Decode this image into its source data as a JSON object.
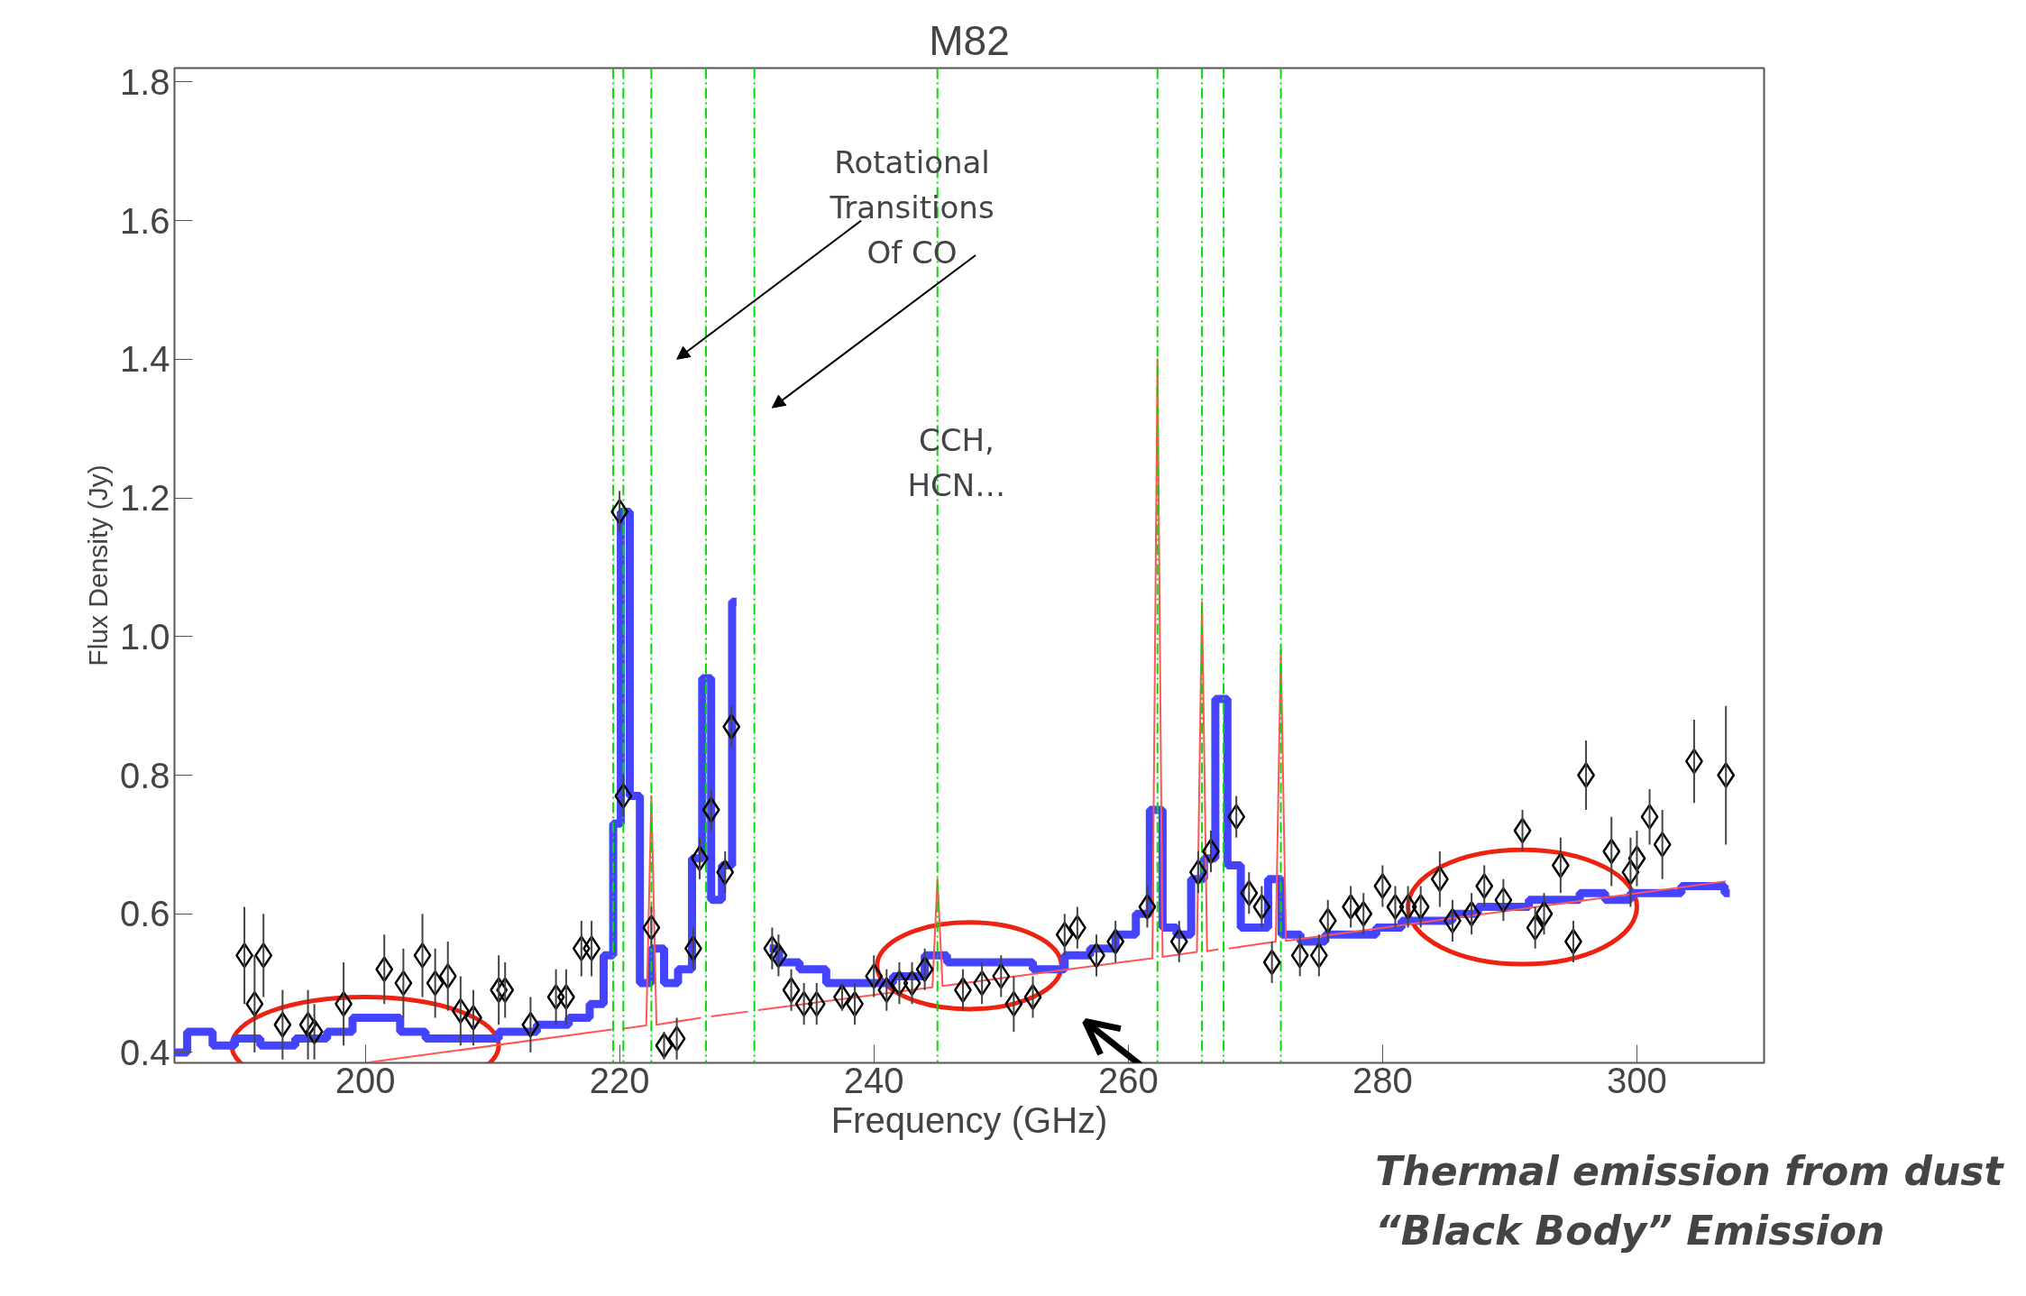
{
  "chart_data": {
    "type": "line",
    "title": "M82",
    "xlabel": "Frequency (GHz)",
    "ylabel": "Flux Density (Jy)",
    "xlim": [
      185,
      310
    ],
    "xticks": [
      200,
      220,
      240,
      260,
      280,
      300
    ],
    "ylim": [
      0.385,
      1.82
    ],
    "yticks": [
      0.4,
      0.6,
      0.8,
      {
        "value": 1.0,
        "label": "1.0"
      },
      1.2,
      1.4,
      1.6,
      1.8
    ],
    "grid": false,
    "series": [
      {
        "type": "step",
        "color": "#4444ff",
        "x": [
          185,
          187,
          189,
          190.5,
          193,
          196,
          198,
          200,
          202,
          203.5,
          206,
          209,
          212,
          215,
          217,
          218.3,
          219.2,
          219.8,
          220.4,
          221.2,
          222,
          223,
          224,
          225.2,
          226.2,
          226.8,
          227.6,
          228.5,
          229.2,
          230.2,
          231.8,
          233.3,
          235,
          237.5,
          240,
          243,
          245,
          246.5,
          248.5,
          251,
          254,
          256,
          258,
          260,
          261.2,
          262.2,
          263.2,
          264.4,
          265.5,
          266.4,
          267.3,
          268.3,
          269.4,
          270.5,
          271.5,
          272.6,
          274.5,
          276.5,
          278.5,
          280.5,
          282.5,
          284.5,
          286.5,
          288.5,
          290.5,
          292.5,
          294.5,
          296.5,
          298.5,
          300.5,
          302.5,
          304.5,
          306.5,
          307.3
        ],
        "values": [
          0.4,
          0.43,
          0.41,
          0.42,
          0.41,
          0.42,
          0.43,
          0.45,
          0.45,
          0.43,
          0.42,
          0.42,
          0.43,
          0.44,
          0.45,
          0.47,
          0.54,
          0.73,
          1.18,
          0.77,
          0.5,
          0.55,
          0.5,
          0.52,
          0.68,
          0.94,
          0.62,
          0.67,
          1.05,
          null,
          0.55,
          0.53,
          0.52,
          0.5,
          0.5,
          0.51,
          0.54,
          0.53,
          0.53,
          0.53,
          0.52,
          0.54,
          0.55,
          0.57,
          0.6,
          0.75,
          0.58,
          0.57,
          0.65,
          0.68,
          0.91,
          0.67,
          0.58,
          0.58,
          0.65,
          0.57,
          0.56,
          0.57,
          0.57,
          0.58,
          0.59,
          0.59,
          0.6,
          0.61,
          0.61,
          0.62,
          0.62,
          0.63,
          0.62,
          0.63,
          0.63,
          0.64,
          0.64,
          0.63
        ]
      },
      {
        "color": "#ff5555",
        "x": [
          200,
          219.4,
          219.8,
          220.2,
          222.1,
          222.5,
          222.9,
          226.4,
          226.8,
          227.2,
          230.1,
          230.5,
          230.9,
          244.6,
          245,
          245.4,
          261.9,
          262.3,
          262.7,
          265.4,
          265.8,
          266.2,
          267.1,
          267.5,
          267.9,
          271.6,
          272,
          272.4,
          307
        ],
        "values": [
          0.385,
          0.433,
          null,
          0.434,
          0.439,
          0.77,
          0.44,
          0.45,
          null,
          0.452,
          0.459,
          null,
          0.461,
          0.494,
          0.65,
          0.496,
          0.536,
          1.4,
          0.538,
          0.545,
          1.05,
          0.546,
          0.549,
          null,
          0.55,
          0.56,
          0.98,
          0.561,
          0.647
        ]
      },
      {
        "type": "scatter",
        "color": "#000000",
        "marker": "diamond",
        "x": [
          190.5,
          192,
          191.3,
          193.5,
          196,
          195.5,
          198.3,
          201.5,
          203,
          204.5,
          205.5,
          206.5,
          207.5,
          208.5,
          210.5,
          211,
          213,
          215,
          215.8,
          217,
          217.8,
          220,
          220.3,
          222.5,
          223.5,
          224.5,
          225.8,
          226.3,
          227.2,
          228.3,
          228.8,
          232,
          232.5,
          233.5,
          234.5,
          235.5,
          237.5,
          238.5,
          240,
          241,
          242,
          243,
          244,
          247,
          248.5,
          250,
          251,
          252.5,
          255,
          256,
          257.5,
          259,
          261.5,
          264,
          265.5,
          266.5,
          268.5,
          269.5,
          270.5,
          271.3,
          273.5,
          275,
          275.7,
          277.5,
          278.5,
          280,
          281,
          282,
          283,
          284.5,
          285.5,
          287,
          288,
          289.5,
          291,
          292,
          292.7,
          294,
          295,
          296,
          298,
          299.5,
          300,
          301,
          302,
          304.5,
          307
        ],
        "values": [
          0.54,
          0.54,
          0.47,
          0.44,
          0.43,
          0.44,
          0.47,
          0.52,
          0.5,
          0.54,
          0.5,
          0.51,
          0.46,
          0.45,
          0.49,
          0.49,
          0.44,
          0.48,
          0.48,
          0.55,
          0.55,
          1.18,
          0.77,
          0.58,
          0.41,
          0.42,
          0.55,
          0.68,
          0.75,
          0.66,
          0.87,
          0.55,
          0.54,
          0.49,
          0.47,
          0.47,
          0.48,
          0.47,
          0.51,
          0.49,
          0.5,
          0.5,
          0.52,
          0.49,
          0.5,
          0.51,
          0.47,
          0.48,
          0.57,
          0.58,
          0.54,
          0.56,
          0.61,
          0.56,
          0.66,
          0.69,
          0.74,
          0.63,
          0.61,
          0.53,
          0.54,
          0.54,
          0.59,
          0.61,
          0.6,
          0.64,
          0.61,
          0.61,
          0.61,
          0.65,
          0.59,
          0.6,
          0.64,
          0.62,
          0.72,
          0.58,
          0.6,
          0.67,
          0.56,
          0.8,
          0.69,
          0.66,
          0.68,
          0.74,
          0.7,
          0.82,
          0.8
        ],
        "errors": [
          0.07,
          0.06,
          0.07,
          0.05,
          0.04,
          0.05,
          0.06,
          0.05,
          0.05,
          0.06,
          0.05,
          0.05,
          0.05,
          0.04,
          0.05,
          0.04,
          0.04,
          0.04,
          0.04,
          0.04,
          0.04,
          0.03,
          0.03,
          0.03,
          0.02,
          0.03,
          0.03,
          0.03,
          0.03,
          0.03,
          0.03,
          0.03,
          0.03,
          0.03,
          0.03,
          0.03,
          0.02,
          0.03,
          0.03,
          0.03,
          0.03,
          0.03,
          0.03,
          0.03,
          0.03,
          0.03,
          0.04,
          0.03,
          0.03,
          0.03,
          0.03,
          0.03,
          0.03,
          0.03,
          0.03,
          0.03,
          0.03,
          0.03,
          0.03,
          0.03,
          0.03,
          0.03,
          0.03,
          0.03,
          0.03,
          0.03,
          0.03,
          0.03,
          0.03,
          0.04,
          0.03,
          0.03,
          0.03,
          0.03,
          0.03,
          0.03,
          0.03,
          0.04,
          0.03,
          0.05,
          0.05,
          0.05,
          0.04,
          0.04,
          0.05,
          0.06,
          0.1
        ]
      }
    ],
    "ref_lines": [
      {
        "axis": "x",
        "value": 219.5,
        "color": "#00dd00",
        "line_style": "dashed"
      },
      {
        "axis": "x",
        "value": 220.3,
        "color": "#00dd00",
        "line_style": "dashed"
      },
      {
        "axis": "x",
        "value": 222.5,
        "color": "#00dd00",
        "line_style": "dashed"
      },
      {
        "axis": "x",
        "value": 226.8,
        "color": "#00dd00",
        "line_style": "dashed"
      },
      {
        "axis": "x",
        "value": 230.6,
        "color": "#00dd00",
        "line_style": "dashed"
      },
      {
        "axis": "x",
        "value": 245,
        "color": "#00dd00",
        "line_style": "dashed"
      },
      {
        "axis": "x",
        "value": 262.3,
        "color": "#00dd00",
        "line_style": "dashed"
      },
      {
        "axis": "x",
        "value": 265.8,
        "color": "#00dd00",
        "line_style": "dashed"
      },
      {
        "axis": "x",
        "value": 267.5,
        "color": "#00dd00",
        "line_style": "dashed"
      },
      {
        "axis": "x",
        "value": 272,
        "color": "#00dd00",
        "line_style": "dashed"
      }
    ],
    "annotations": [
      "Rotational\nTransitions\nOf CO",
      "CCH,\nHCN…",
      "Thermal emission from dust\n“Black Body” Emission"
    ]
  }
}
